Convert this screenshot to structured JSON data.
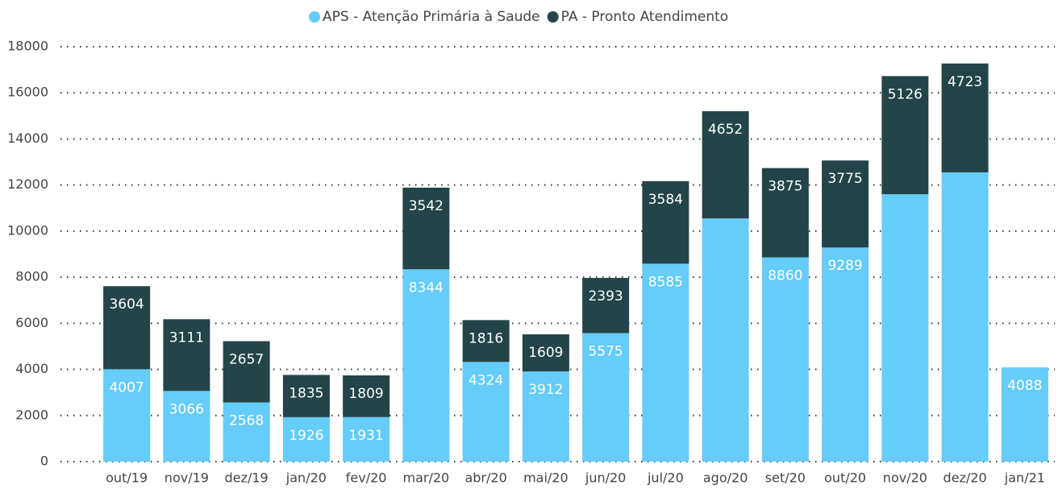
{
  "chart_data": {
    "type": "stacked-bar",
    "categories": [
      "out/19",
      "nov/19",
      "dez/19",
      "jan/20",
      "fev/20",
      "mar/20",
      "abr/20",
      "mai/20",
      "jun/20",
      "jul/20",
      "ago/20",
      "set/20",
      "out/20",
      "nov/20",
      "dez/20",
      "jan/21"
    ],
    "series": [
      {
        "name": "APS - Atenção Primária à Saude",
        "color": "#66ccf9",
        "values": [
          4007,
          3066,
          2568,
          1926,
          1931,
          8344,
          4324,
          3912,
          5575,
          8585,
          10550,
          8860,
          9289,
          11600,
          12550,
          4088
        ],
        "value_labels": [
          4007,
          3066,
          2568,
          1926,
          1931,
          8344,
          4324,
          3912,
          5575,
          8585,
          null,
          8860,
          9289,
          null,
          null,
          4088
        ]
      },
      {
        "name": "PA - Pronto Atendimento",
        "color": "#234449",
        "values": [
          3604,
          3111,
          2657,
          1835,
          1809,
          3542,
          1816,
          1609,
          2393,
          3584,
          4652,
          3875,
          3775,
          5126,
          4723,
          null
        ],
        "value_labels": [
          3604,
          3111,
          2657,
          1835,
          1809,
          3542,
          1816,
          1609,
          2393,
          3584,
          4652,
          3875,
          3775,
          5126,
          4723,
          null
        ]
      }
    ],
    "ylim": [
      0,
      18000
    ],
    "yticks": [
      0,
      2000,
      4000,
      6000,
      8000,
      10000,
      12000,
      14000,
      16000,
      18000
    ],
    "grid": true,
    "legend": "top"
  }
}
